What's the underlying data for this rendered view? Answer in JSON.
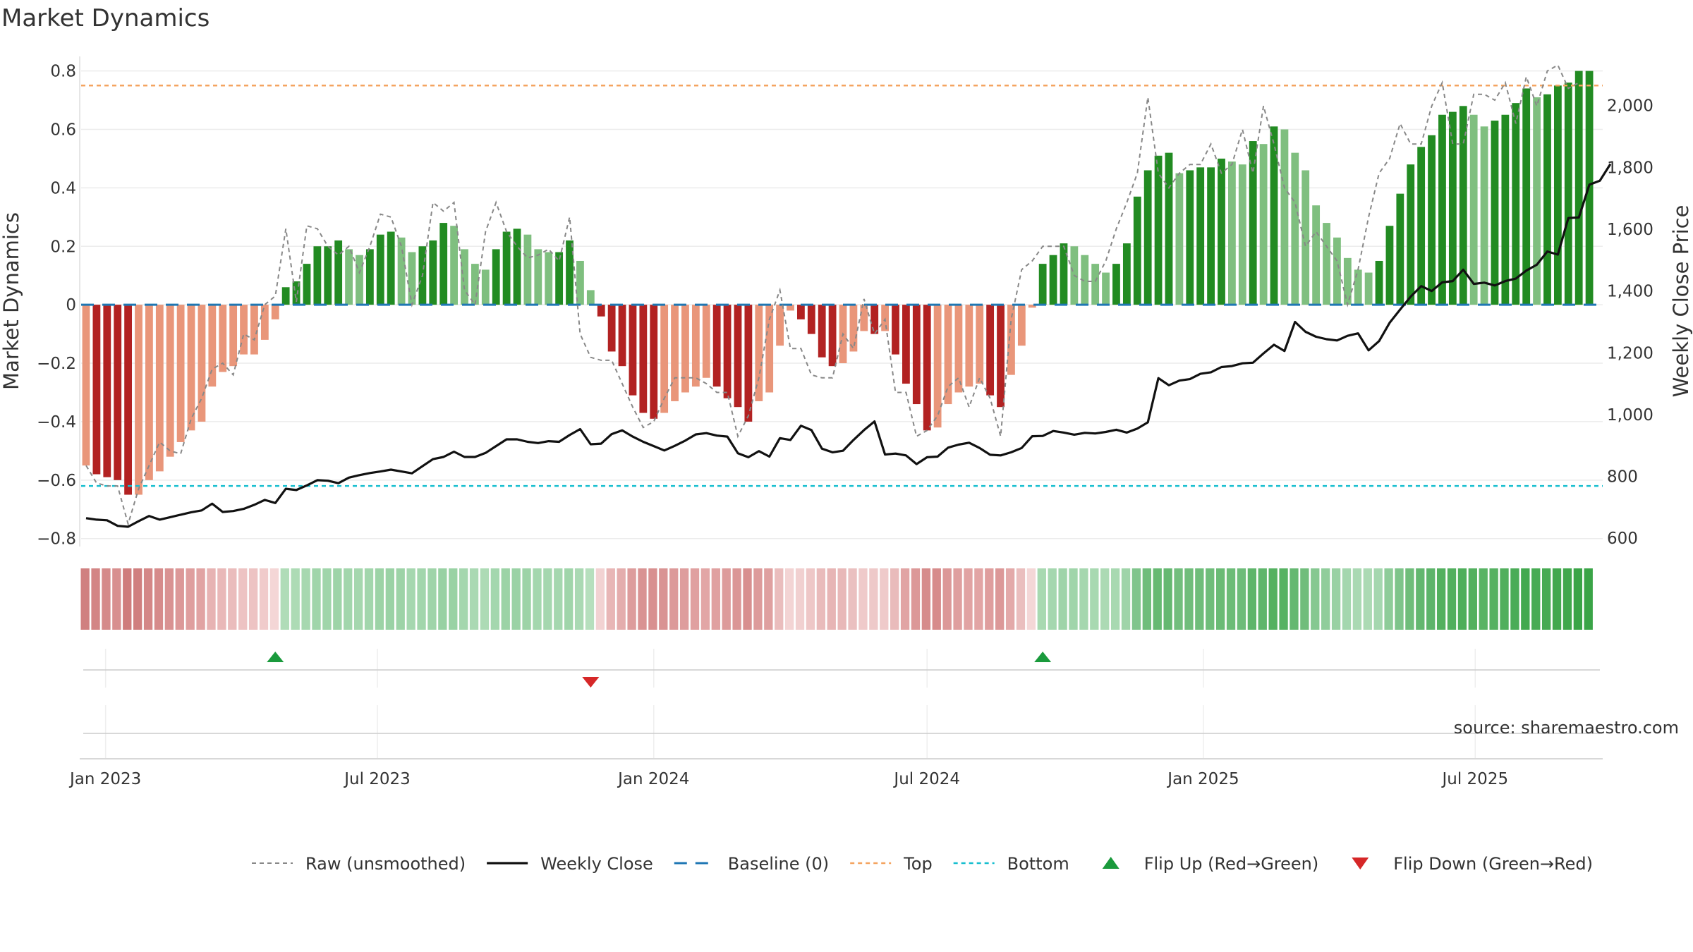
{
  "chart_data": {
    "type": "bar",
    "title": "Market Dynamics",
    "ylabel": "Market Dynamics",
    "y2label": "Weekly Close Price",
    "ylim": [
      -0.82,
      0.84
    ],
    "y2lim": [
      580,
      2150
    ],
    "yticks": [
      -0.8,
      -0.6,
      -0.4,
      -0.2,
      0,
      0.2,
      0.4,
      0.6,
      0.8
    ],
    "ytick_labels": [
      "−0.8",
      "−0.6",
      "−0.4",
      "−0.2",
      "0",
      "0.2",
      "0.4",
      "0.6",
      "0.8"
    ],
    "y2ticks": [
      600,
      800,
      1000,
      1200,
      1400,
      1600,
      1800,
      2000
    ],
    "y2tick_labels": [
      "600",
      "800",
      "1,000",
      "1,200",
      "1,400",
      "1,600",
      "1,800",
      "2,000"
    ],
    "x_start": "2022-12-19",
    "x_end": "2025-09-22",
    "x_step_days": 7,
    "xticks": [
      {
        "date": "2023-01-01",
        "label": "Jan 2023"
      },
      {
        "date": "2023-07-01",
        "label": "Jul 2023"
      },
      {
        "date": "2024-01-01",
        "label": "Jan 2024"
      },
      {
        "date": "2024-07-01",
        "label": "Jul 2024"
      },
      {
        "date": "2025-01-01",
        "label": "Jan 2025"
      },
      {
        "date": "2025-07-01",
        "label": "Jul 2025"
      }
    ],
    "top_level": 0.75,
    "bottom_level": -0.62,
    "baseline": 0,
    "smoothed": [
      -0.55,
      -0.58,
      -0.59,
      -0.6,
      -0.65,
      -0.65,
      -0.6,
      -0.57,
      -0.52,
      -0.47,
      -0.43,
      -0.4,
      -0.28,
      -0.23,
      -0.21,
      -0.17,
      -0.17,
      -0.12,
      -0.05,
      0.06,
      0.08,
      0.14,
      0.2,
      0.2,
      0.22,
      0.19,
      0.17,
      0.19,
      0.24,
      0.25,
      0.23,
      0.18,
      0.2,
      0.22,
      0.28,
      0.27,
      0.19,
      0.14,
      0.12,
      0.19,
      0.25,
      0.26,
      0.24,
      0.19,
      0.18,
      0.18,
      0.22,
      0.15,
      0.05,
      -0.04,
      -0.16,
      -0.21,
      -0.31,
      -0.37,
      -0.39,
      -0.37,
      -0.33,
      -0.3,
      -0.28,
      -0.25,
      -0.28,
      -0.32,
      -0.35,
      -0.4,
      -0.33,
      -0.3,
      -0.14,
      -0.02,
      -0.05,
      -0.1,
      -0.18,
      -0.21,
      -0.2,
      -0.16,
      -0.09,
      -0.1,
      -0.09,
      -0.17,
      -0.27,
      -0.34,
      -0.43,
      -0.42,
      -0.34,
      -0.3,
      -0.28,
      -0.27,
      -0.31,
      -0.35,
      -0.24,
      -0.14,
      -0.01,
      0.14,
      0.17,
      0.21,
      0.2,
      0.17,
      0.14,
      0.11,
      0.14,
      0.21,
      0.37,
      0.46,
      0.51,
      0.52,
      0.45,
      0.46,
      0.47,
      0.47,
      0.5,
      0.49,
      0.48,
      0.56,
      0.55,
      0.61,
      0.6,
      0.52,
      0.46,
      0.34,
      0.28,
      0.23,
      0.16,
      0.12,
      0.11,
      0.15,
      0.27,
      0.38,
      0.48,
      0.54,
      0.58,
      0.65,
      0.66,
      0.68,
      0.65,
      0.61,
      0.63,
      0.65,
      0.69,
      0.74,
      0.71,
      0.72,
      0.75,
      0.76,
      0.8,
      0.8
    ],
    "raw": [
      -0.55,
      -0.61,
      -0.62,
      -0.62,
      -0.75,
      -0.63,
      -0.55,
      -0.47,
      -0.5,
      -0.51,
      -0.39,
      -0.32,
      -0.22,
      -0.2,
      -0.24,
      -0.1,
      -0.12,
      -0.0,
      0.03,
      0.26,
      0.01,
      0.27,
      0.26,
      0.2,
      0.17,
      0.2,
      0.11,
      0.2,
      0.31,
      0.3,
      0.2,
      0.0,
      0.1,
      0.35,
      0.32,
      0.35,
      0.05,
      0.0,
      0.25,
      0.35,
      0.25,
      0.2,
      0.16,
      0.17,
      0.19,
      0.15,
      0.3,
      -0.1,
      -0.18,
      -0.19,
      -0.19,
      -0.27,
      -0.35,
      -0.42,
      -0.4,
      -0.32,
      -0.25,
      -0.25,
      -0.25,
      -0.27,
      -0.3,
      -0.3,
      -0.45,
      -0.38,
      -0.25,
      -0.05,
      0.05,
      -0.15,
      -0.15,
      -0.24,
      -0.25,
      -0.25,
      -0.1,
      -0.15,
      0.02,
      -0.1,
      -0.05,
      -0.3,
      -0.3,
      -0.45,
      -0.43,
      -0.38,
      -0.28,
      -0.25,
      -0.35,
      -0.25,
      -0.32,
      -0.45,
      -0.05,
      0.12,
      0.15,
      0.2,
      0.2,
      0.2,
      0.1,
      0.08,
      0.08,
      0.15,
      0.26,
      0.35,
      0.45,
      0.71,
      0.45,
      0.4,
      0.45,
      0.48,
      0.48,
      0.55,
      0.45,
      0.48,
      0.6,
      0.45,
      0.68,
      0.55,
      0.4,
      0.35,
      0.2,
      0.25,
      0.2,
      0.15,
      0.0,
      0.12,
      0.3,
      0.45,
      0.5,
      0.62,
      0.55,
      0.55,
      0.68,
      0.76,
      0.55,
      0.55,
      0.72,
      0.72,
      0.7,
      0.76,
      0.62,
      0.78,
      0.68,
      0.8,
      0.82,
      0.74,
      0.76
    ],
    "close": [
      665,
      660,
      658,
      640,
      637,
      655,
      672,
      660,
      668,
      676,
      684,
      690,
      712,
      685,
      688,
      695,
      708,
      724,
      714,
      760,
      756,
      771,
      788,
      786,
      778,
      796,
      804,
      811,
      816,
      822,
      816,
      810,
      833,
      856,
      863,
      880,
      863,
      863,
      876,
      898,
      920,
      920,
      912,
      908,
      914,
      912,
      934,
      953,
      904,
      906,
      937,
      949,
      929,
      912,
      898,
      884,
      899,
      916,
      936,
      940,
      932,
      929,
      875,
      862,
      882,
      864,
      924,
      918,
      964,
      950,
      890,
      878,
      883,
      918,
      950,
      978,
      871,
      874,
      868,
      840,
      862,
      864,
      893,
      903,
      909,
      892,
      870,
      868,
      878,
      892,
      930,
      931,
      947,
      942,
      935,
      941,
      939,
      944,
      951,
      942,
      955,
      975,
      1118,
      1095,
      1110,
      1115,
      1132,
      1137,
      1154,
      1157,
      1166,
      1168,
      1198,
      1226,
      1206,
      1300,
      1268,
      1252,
      1244,
      1240,
      1255,
      1263,
      1208,
      1238,
      1297,
      1340,
      1382,
      1416,
      1400,
      1428,
      1432,
      1469,
      1423,
      1427,
      1418,
      1432,
      1440,
      1466,
      1485,
      1528,
      1518,
      1636,
      1638,
      1744,
      1757,
      1811
    ]
  },
  "regime_band": {
    "colors": [
      "#d08080",
      "#d38585",
      "#d58a8a",
      "#d88f8f",
      "#cf7c7c",
      "#d07f7f",
      "#d48787",
      "#d68b8b",
      "#d99292",
      "#dc9898",
      "#df9e9e",
      "#e1a3a3",
      "#e7b3b3",
      "#e9b8b8",
      "#eabcbc",
      "#edc3c3",
      "#edc3c3",
      "#f0cbcb",
      "#f4d6d6",
      "#b0dcb8",
      "#addbb5",
      "#a7d8b0",
      "#a0d5aa",
      "#a0d5aa",
      "#9ed4a8",
      "#a2d6ac",
      "#a5d7ae",
      "#a2d6ac",
      "#9cd3a6",
      "#9ad2a5",
      "#9dd3a7",
      "#a5d7af",
      "#a2d6ac",
      "#9fd4a9",
      "#98d1a3",
      "#99d2a4",
      "#a4d7ae",
      "#aad9b3",
      "#addbb5",
      "#a4d7ae",
      "#9cd3a6",
      "#9ad2a5",
      "#9dd3a7",
      "#a4d7ae",
      "#a5d7af",
      "#a5d7af",
      "#a0d5aa",
      "#aad9b3",
      "#b6dfbd",
      "#f2d2d2",
      "#e8b6b6",
      "#e4adad",
      "#dd9c9c",
      "#d99393",
      "#d89090",
      "#d99393",
      "#dc9999",
      "#de9d9d",
      "#e0a0a0",
      "#e2a6a6",
      "#e0a0a0",
      "#dd9b9b",
      "#db9696",
      "#d88f8f",
      "#dd9b9b",
      "#dfa0a0",
      "#eabdbd",
      "#f3d4d4",
      "#f1d0d0",
      "#eec7c7",
      "#e9bbbb",
      "#e7b5b5",
      "#e8b8b8",
      "#eac0c0",
      "#efcaca",
      "#eec9c9",
      "#efcaca",
      "#e9bbbb",
      "#e1a4a4",
      "#dc9898",
      "#d68b8b",
      "#d78c8c",
      "#dc9898",
      "#df9f9f",
      "#e1a3a3",
      "#e2a5a5",
      "#df9e9e",
      "#dc9898",
      "#e3a9a9",
      "#eabebe",
      "#f4d7d7",
      "#a8d9b1",
      "#a5d7af",
      "#9fd4a9",
      "#a0d5aa",
      "#a5d7af",
      "#a8d9b1",
      "#acdab4",
      "#a8d9b1",
      "#9fd4a9",
      "#80c58c",
      "#6fbd7b",
      "#66b972",
      "#65b871",
      "#72be7d",
      "#70bd7b",
      "#6fbd7a",
      "#6fbd7a",
      "#6abb75",
      "#6cbc77",
      "#6dbc79",
      "#5eb56a",
      "#5fb66b",
      "#54b160",
      "#56b262",
      "#65b871",
      "#70bd7b",
      "#86c891",
      "#90cd9b",
      "#99d1a3",
      "#a4d7ae",
      "#aad9b3",
      "#acdab4",
      "#a5d7af",
      "#8ecc99",
      "#7ec48a",
      "#6fbd7a",
      "#63b76f",
      "#5db46a",
      "#52b05e",
      "#51af5d",
      "#4eae5a",
      "#52b05e",
      "#58b364",
      "#55b161",
      "#51af5d",
      "#4aac57",
      "#43a94f",
      "#48ab54",
      "#46aa52",
      "#42a84e",
      "#40a74c",
      "#3aa447",
      "#3aa447"
    ]
  },
  "flips": [
    {
      "date": "2023-04-24",
      "dir": "up",
      "label": "Flip Up (Red→Green)"
    },
    {
      "date": "2023-11-20",
      "dir": "down",
      "label": "Flip Down (Green→Red)"
    },
    {
      "date": "2024-09-16",
      "dir": "up",
      "label": "Flip Up (Red→Green)"
    }
  ],
  "legend": [
    {
      "key": "raw",
      "label": "Raw (unsmoothed)"
    },
    {
      "key": "close",
      "label": "Weekly Close"
    },
    {
      "key": "baseline",
      "label": "Baseline (0)"
    },
    {
      "key": "top",
      "label": "Top"
    },
    {
      "key": "bottom",
      "label": "Bottom"
    },
    {
      "key": "flipup",
      "label": "Flip Up (Red→Green)"
    },
    {
      "key": "flipdown",
      "label": "Flip Down (Green→Red)"
    }
  ],
  "source": "source: sharemaestro.com",
  "colors": {
    "strong_red": "#b22222",
    "light_red": "#e9967a",
    "strong_green": "#228b22",
    "light_green": "#7fbf7f",
    "close_line": "#111111",
    "raw_line": "#888888",
    "baseline": "#1f77b4",
    "top": "#f4a460",
    "bottom": "#17becf",
    "flip_up": "#1a9a3c",
    "flip_down": "#d62728"
  }
}
